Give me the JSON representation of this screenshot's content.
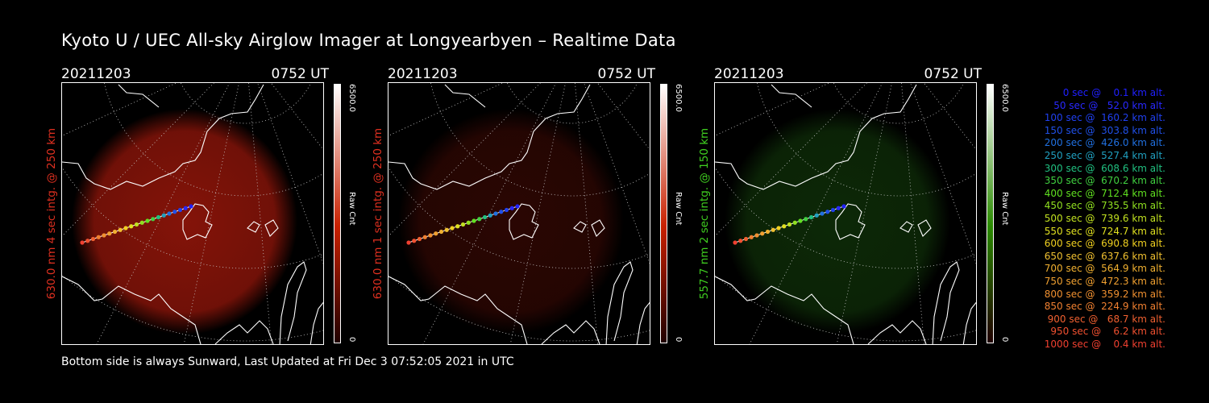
{
  "title": "Kyoto U / UEC All-sky Airglow Imager at Longyearbyen – Realtime Data",
  "footer": "Bottom side is always Sunward, Last Updated at Fri Dec  3 07:52:05 2021 in UTC",
  "panels": [
    {
      "date": "20211203",
      "time": "0752 UT",
      "ylabel": "630.0 nm 4 sec intg. @ 250 km",
      "label_color": "#e03020",
      "cbar_max": "6500.0",
      "cbar_min": "0",
      "cbar_unit": "Raw Cnt",
      "cbar_color": "#c82000",
      "glow_color": "#b01a0c",
      "glow_opacity": 0.75
    },
    {
      "date": "20211203",
      "time": "0752 UT",
      "ylabel": "630.0 nm 1 sec intg. @ 250 km",
      "label_color": "#e03020",
      "cbar_max": "6500.0",
      "cbar_min": "0",
      "cbar_unit": "Raw Cnt",
      "cbar_color": "#c82000",
      "glow_color": "#7a1208",
      "glow_opacity": 0.35
    },
    {
      "date": "20211203",
      "time": "0752 UT",
      "ylabel": "557.7 nm 2 sec intg. @ 150 km",
      "label_color": "#40d020",
      "cbar_max": "6500.0",
      "cbar_min": "0",
      "cbar_unit": "Raw Cnt",
      "cbar_color": "#2a8a00",
      "glow_color": "#1c5a10",
      "glow_opacity": 0.45
    }
  ],
  "legend": [
    {
      "text": "0 sec @    0.1 km alt.",
      "color": "#2020ff"
    },
    {
      "text": "50 sec @   52.0 km alt.",
      "color": "#2828ff"
    },
    {
      "text": "100 sec @  160.2 km alt.",
      "color": "#2040f0"
    },
    {
      "text": "150 sec @  303.8 km alt.",
      "color": "#2050e8"
    },
    {
      "text": "200 sec @  426.0 km alt.",
      "color": "#2070e0"
    },
    {
      "text": "250 sec @  527.4 km alt.",
      "color": "#20a0c0"
    },
    {
      "text": "300 sec @  608.6 km alt.",
      "color": "#20c080"
    },
    {
      "text": "350 sec @  670.2 km alt.",
      "color": "#40d040"
    },
    {
      "text": "400 sec @  712.4 km alt.",
      "color": "#60e020"
    },
    {
      "text": "450 sec @  735.5 km alt.",
      "color": "#90e020"
    },
    {
      "text": "500 sec @  739.6 km alt.",
      "color": "#c0e020"
    },
    {
      "text": "550 sec @  724.7 km alt.",
      "color": "#e0e020"
    },
    {
      "text": "600 sec @  690.8 km alt.",
      "color": "#f0d020"
    },
    {
      "text": "650 sec @  637.6 km alt.",
      "color": "#f0c030"
    },
    {
      "text": "700 sec @  564.9 km alt.",
      "color": "#f0b030"
    },
    {
      "text": "750 sec @  472.3 km alt.",
      "color": "#f0a030"
    },
    {
      "text": "800 sec @  359.2 km alt.",
      "color": "#f09030"
    },
    {
      "text": "850 sec @  224.9 km alt.",
      "color": "#f08030"
    },
    {
      "text": "900 sec @   68.7 km alt.",
      "color": "#f06030"
    },
    {
      "text": "950 sec @    6.2 km alt.",
      "color": "#f05030"
    },
    {
      "text": "1000 sec @    0.4 km alt.",
      "color": "#f04030"
    }
  ]
}
